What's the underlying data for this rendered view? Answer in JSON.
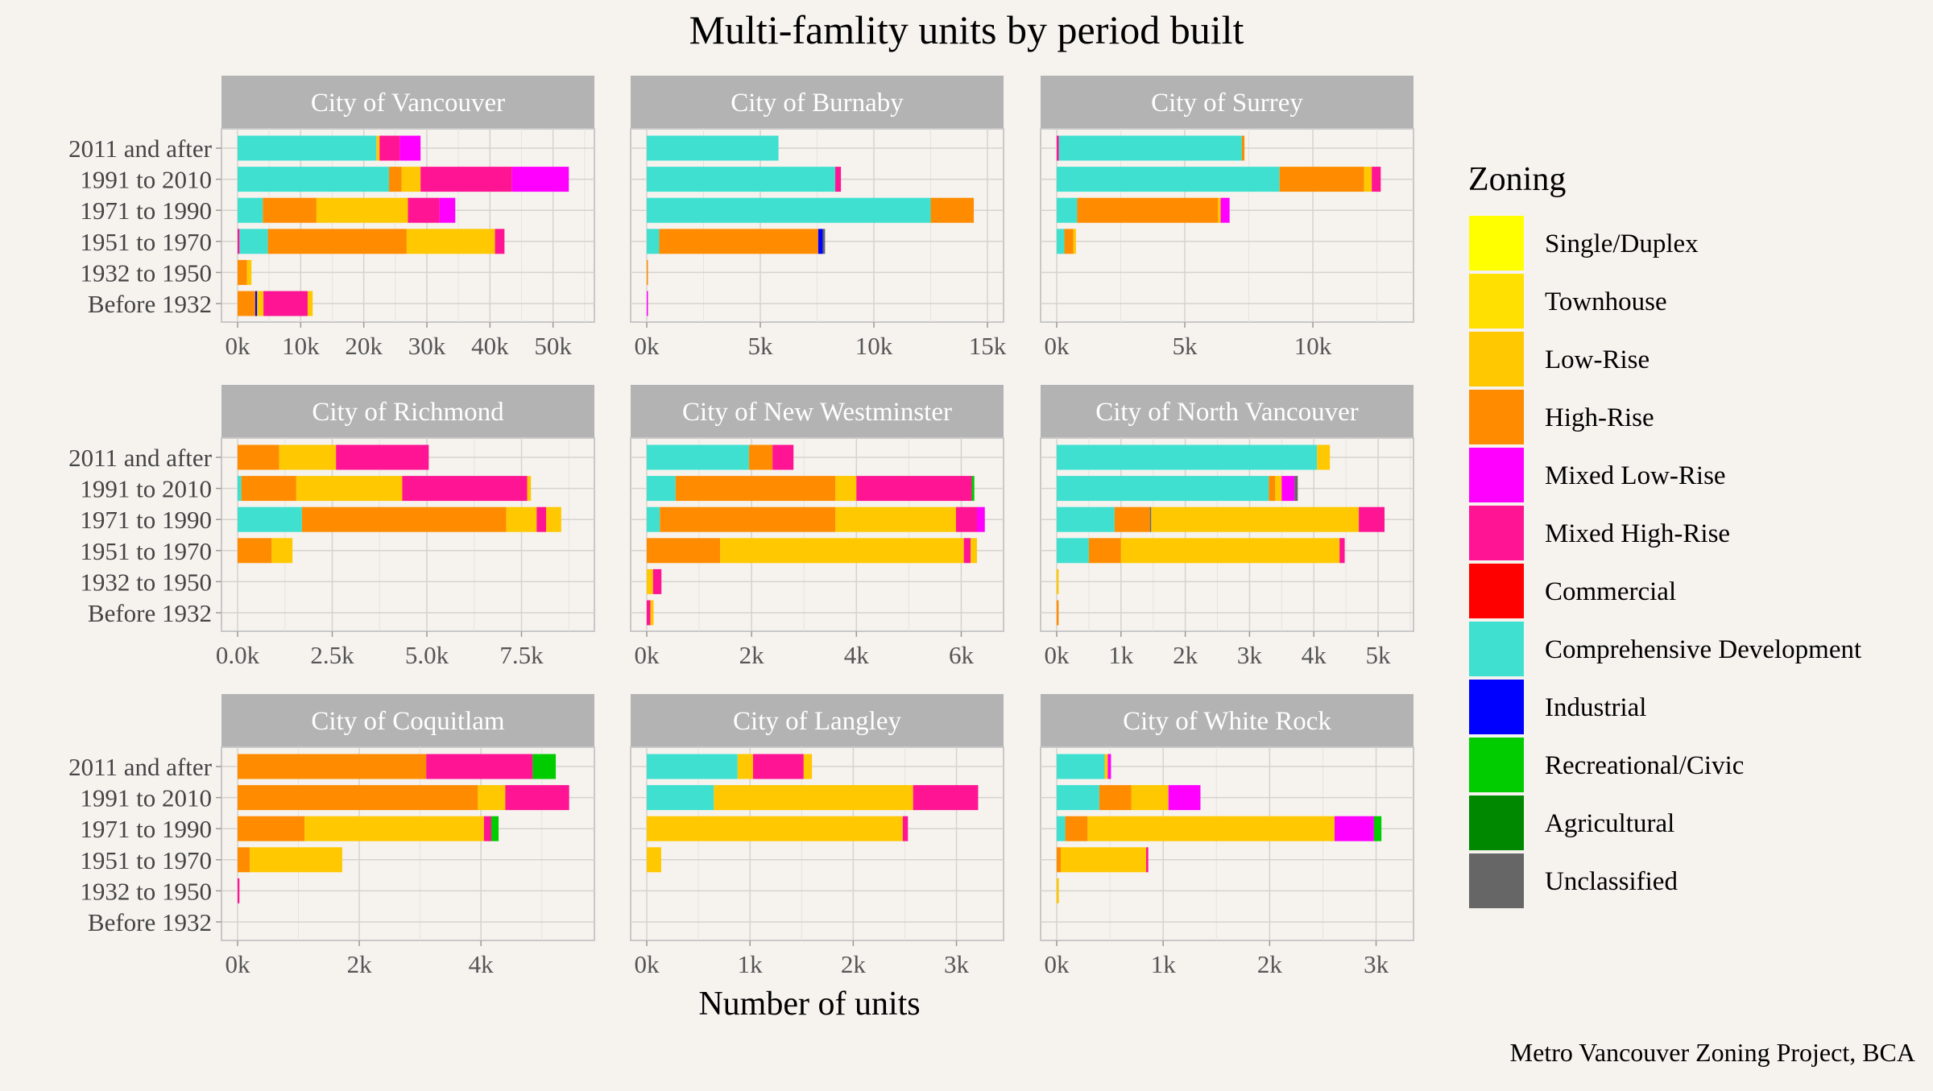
{
  "title": "Multi-famlity units by period built",
  "xlabel": "Number of units",
  "caption": "Metro Vancouver Zoning Project, BCA",
  "legend": {
    "title": "Zoning",
    "items": [
      {
        "name": "Single/Duplex",
        "color": "#ffff00"
      },
      {
        "name": "Townhouse",
        "color": "#ffe000"
      },
      {
        "name": "Low-Rise",
        "color": "#ffc800"
      },
      {
        "name": "High-Rise",
        "color": "#ff8c00"
      },
      {
        "name": "Mixed Low-Rise",
        "color": "#ff00ff"
      },
      {
        "name": "Mixed High-Rise",
        "color": "#ff1493"
      },
      {
        "name": "Commercial",
        "color": "#ff0000"
      },
      {
        "name": "Comprehensive Development",
        "color": "#40e0d0"
      },
      {
        "name": "Industrial",
        "color": "#0000ff"
      },
      {
        "name": "Recreational/Civic",
        "color": "#00cc00"
      },
      {
        "name": "Agricultural",
        "color": "#008800"
      },
      {
        "name": "Unclassified",
        "color": "#666666"
      }
    ]
  },
  "chart_data": {
    "type": "bar",
    "orientation": "horizontal",
    "stacked": true,
    "categories": [
      "2011 and after",
      "1991 to 2010",
      "1971 to 1990",
      "1951 to 1970",
      "1932 to 1950",
      "Before 1932"
    ],
    "panels": [
      {
        "name": "City of Vancouver",
        "xlim": [
          0,
          54000
        ],
        "ticks": [
          0,
          10000,
          20000,
          30000,
          40000,
          50000
        ],
        "tick_labels": [
          "0k",
          "10k",
          "20k",
          "30k",
          "40k",
          "50k"
        ],
        "bars": [
          [
            [
              "Comprehensive Development",
              22000
            ],
            [
              "Low-Rise",
              500
            ],
            [
              "Mixed High-Rise",
              3200
            ],
            [
              "Mixed Low-Rise",
              3300
            ]
          ],
          [
            [
              "Comprehensive Development",
              24000
            ],
            [
              "High-Rise",
              2000
            ],
            [
              "Low-Rise",
              3000
            ],
            [
              "Mixed High-Rise",
              14500
            ],
            [
              "Mixed Low-Rise",
              9000
            ]
          ],
          [
            [
              "Comprehensive Development",
              4000
            ],
            [
              "High-Rise",
              8500
            ],
            [
              "Low-Rise",
              14500
            ],
            [
              "Mixed High-Rise",
              5000
            ],
            [
              "Mixed Low-Rise",
              2500
            ]
          ],
          [
            [
              "Mixed High-Rise",
              300
            ],
            [
              "Comprehensive Development",
              4500
            ],
            [
              "High-Rise",
              22000
            ],
            [
              "Low-Rise",
              14000
            ],
            [
              "Mixed High-Rise",
              1500
            ]
          ],
          [
            [
              "High-Rise",
              1500
            ],
            [
              "Low-Rise",
              700
            ]
          ],
          [
            [
              "High-Rise",
              2800
            ],
            [
              "Industrial",
              300
            ],
            [
              "Low-Rise",
              1000
            ],
            [
              "Mixed High-Rise",
              7000
            ],
            [
              "Low-Rise",
              800
            ]
          ]
        ]
      },
      {
        "name": "City of Burnaby",
        "xlim": [
          0,
          15000
        ],
        "ticks": [
          0,
          5000,
          10000,
          15000
        ],
        "tick_labels": [
          "0k",
          "5k",
          "10k",
          "15k"
        ],
        "bars": [
          [
            [
              "Comprehensive Development",
              5800
            ]
          ],
          [
            [
              "Comprehensive Development",
              8300
            ],
            [
              "Mixed High-Rise",
              250
            ]
          ],
          [
            [
              "Comprehensive Development",
              12500
            ],
            [
              "High-Rise",
              1900
            ]
          ],
          [
            [
              "Comprehensive Development",
              550
            ],
            [
              "High-Rise",
              7000
            ],
            [
              "Industrial",
              200
            ],
            [
              "Unclassified",
              100
            ]
          ],
          [
            [
              "High-Rise",
              50
            ]
          ],
          [
            [
              "Mixed Low-Rise",
              30
            ]
          ]
        ]
      },
      {
        "name": "City of Surrey",
        "xlim": [
          0,
          13300
        ],
        "ticks": [
          0,
          5000,
          10000
        ],
        "tick_labels": [
          "0k",
          "5k",
          "10k"
        ],
        "bars": [
          [
            [
              "Mixed High-Rise",
              80
            ],
            [
              "Comprehensive Development",
              7150
            ],
            [
              "High-Rise",
              100
            ]
          ],
          [
            [
              "Comprehensive Development",
              8700
            ],
            [
              "High-Rise",
              3300
            ],
            [
              "Low-Rise",
              300
            ],
            [
              "Mixed High-Rise",
              350
            ]
          ],
          [
            [
              "Comprehensive Development",
              800
            ],
            [
              "High-Rise",
              5500
            ],
            [
              "Low-Rise",
              100
            ],
            [
              "Mixed Low-Rise",
              350
            ]
          ],
          [
            [
              "Comprehensive Development",
              300
            ],
            [
              "High-Rise",
              350
            ],
            [
              "Low-Rise",
              100
            ]
          ],
          [],
          []
        ]
      },
      {
        "name": "City of Richmond",
        "xlim": [
          0,
          9000
        ],
        "ticks": [
          0,
          2500,
          5000,
          7500
        ],
        "tick_labels": [
          "0.0k",
          "2.5k",
          "5.0k",
          "7.5k"
        ],
        "bars": [
          [
            [
              "High-Rise",
              1100
            ],
            [
              "Low-Rise",
              1500
            ],
            [
              "Mixed High-Rise",
              2450
            ]
          ],
          [
            [
              "Comprehensive Development",
              100
            ],
            [
              "High-Rise",
              1450
            ],
            [
              "Low-Rise",
              2800
            ],
            [
              "Mixed High-Rise",
              3300
            ],
            [
              "Low-Rise",
              100
            ]
          ],
          [
            [
              "Comprehensive Development",
              1700
            ],
            [
              "High-Rise",
              5400
            ],
            [
              "Low-Rise",
              800
            ],
            [
              "Mixed High-Rise",
              250
            ],
            [
              "Low-Rise",
              400
            ]
          ],
          [
            [
              "High-Rise",
              900
            ],
            [
              "Low-Rise",
              550
            ]
          ],
          [],
          []
        ]
      },
      {
        "name": "City of New Westminster",
        "xlim": [
          0,
          6500
        ],
        "ticks": [
          0,
          2000,
          4000,
          6000
        ],
        "tick_labels": [
          "0k",
          "2k",
          "4k",
          "6k"
        ],
        "bars": [
          [
            [
              "Comprehensive Development",
              1950
            ],
            [
              "High-Rise",
              450
            ],
            [
              "Mixed High-Rise",
              400
            ]
          ],
          [
            [
              "Comprehensive Development",
              550
            ],
            [
              "High-Rise",
              3050
            ],
            [
              "Low-Rise",
              400
            ],
            [
              "Mixed High-Rise",
              2200
            ],
            [
              "Recreational/Civic",
              50
            ]
          ],
          [
            [
              "Comprehensive Development",
              250
            ],
            [
              "High-Rise",
              3350
            ],
            [
              "Low-Rise",
              2300
            ],
            [
              "Mixed High-Rise",
              400
            ],
            [
              "Mixed Low-Rise",
              150
            ]
          ],
          [
            [
              "High-Rise",
              1400
            ],
            [
              "Low-Rise",
              4650
            ],
            [
              "Mixed High-Rise",
              130
            ],
            [
              "Low-Rise",
              120
            ]
          ],
          [
            [
              "Low-Rise",
              120
            ],
            [
              "Mixed High-Rise",
              160
            ]
          ],
          [
            [
              "Mixed High-Rise",
              70
            ],
            [
              "Low-Rise",
              60
            ]
          ]
        ]
      },
      {
        "name": "City of North Vancouver",
        "xlim": [
          0,
          5300
        ],
        "ticks": [
          0,
          1000,
          2000,
          3000,
          4000,
          5000
        ],
        "tick_labels": [
          "0k",
          "1k",
          "2k",
          "3k",
          "4k",
          "5k"
        ],
        "bars": [
          [
            [
              "Comprehensive Development",
              4050
            ],
            [
              "Low-Rise",
              200
            ]
          ],
          [
            [
              "Comprehensive Development",
              3300
            ],
            [
              "High-Rise",
              100
            ],
            [
              "Low-Rise",
              100
            ],
            [
              "Mixed Low-Rise",
              200
            ],
            [
              "Unclassified",
              50
            ]
          ],
          [
            [
              "Comprehensive Development",
              900
            ],
            [
              "High-Rise",
              550
            ],
            [
              "Unclassified",
              20
            ],
            [
              "Low-Rise",
              3230
            ],
            [
              "Mixed High-Rise",
              400
            ]
          ],
          [
            [
              "Comprehensive Development",
              500
            ],
            [
              "High-Rise",
              500
            ],
            [
              "Low-Rise",
              3400
            ],
            [
              "Mixed High-Rise",
              80
            ]
          ],
          [
            [
              "Low-Rise",
              30
            ]
          ],
          [
            [
              "High-Rise",
              30
            ]
          ]
        ]
      },
      {
        "name": "City of Coquitlam",
        "xlim": [
          0,
          5600
        ],
        "ticks": [
          0,
          2000,
          4000
        ],
        "tick_labels": [
          "0k",
          "2k",
          "4k"
        ],
        "bars": [
          [
            [
              "High-Rise",
              3100
            ],
            [
              "Mixed High-Rise",
              1750
            ],
            [
              "Recreational/Civic",
              380
            ]
          ],
          [
            [
              "High-Rise",
              3950
            ],
            [
              "Low-Rise",
              450
            ],
            [
              "Mixed High-Rise",
              1050
            ]
          ],
          [
            [
              "High-Rise",
              1100
            ],
            [
              "Low-Rise",
              2950
            ],
            [
              "Mixed High-Rise",
              120
            ],
            [
              "Recreational/Civic",
              120
            ]
          ],
          [
            [
              "High-Rise",
              200
            ],
            [
              "Low-Rise",
              1520
            ]
          ],
          [
            [
              "Mixed High-Rise",
              30
            ]
          ],
          []
        ]
      },
      {
        "name": "City of Langley",
        "xlim": [
          0,
          3300
        ],
        "ticks": [
          0,
          1000,
          2000,
          3000
        ],
        "tick_labels": [
          "0k",
          "1k",
          "2k",
          "3k"
        ],
        "bars": [
          [
            [
              "Comprehensive Development",
              880
            ],
            [
              "Low-Rise",
              150
            ],
            [
              "Mixed High-Rise",
              490
            ],
            [
              "Low-Rise",
              80
            ]
          ],
          [
            [
              "Comprehensive Development",
              650
            ],
            [
              "Low-Rise",
              1930
            ],
            [
              "Mixed High-Rise",
              630
            ]
          ],
          [
            [
              "Low-Rise",
              2480
            ],
            [
              "Mixed High-Rise",
              50
            ]
          ],
          [
            [
              "Low-Rise",
              140
            ]
          ],
          [],
          []
        ]
      },
      {
        "name": "City of White Rock",
        "xlim": [
          0,
          3200
        ],
        "ticks": [
          0,
          1000,
          2000,
          3000
        ],
        "tick_labels": [
          "0k",
          "1k",
          "2k",
          "3k"
        ],
        "bars": [
          [
            [
              "Comprehensive Development",
              450
            ],
            [
              "Low-Rise",
              30
            ],
            [
              "Mixed Low-Rise",
              30
            ]
          ],
          [
            [
              "Comprehensive Development",
              400
            ],
            [
              "High-Rise",
              300
            ],
            [
              "Low-Rise",
              350
            ],
            [
              "Mixed Low-Rise",
              300
            ]
          ],
          [
            [
              "Comprehensive Development",
              80
            ],
            [
              "High-Rise",
              210
            ],
            [
              "Low-Rise",
              2320
            ],
            [
              "Mixed Low-Rise",
              370
            ],
            [
              "Recreational/Civic",
              70
            ]
          ],
          [
            [
              "High-Rise",
              40
            ],
            [
              "Low-Rise",
              800
            ],
            [
              "Mixed High-Rise",
              20
            ]
          ],
          [
            [
              "Low-Rise",
              20
            ]
          ],
          []
        ]
      }
    ]
  }
}
